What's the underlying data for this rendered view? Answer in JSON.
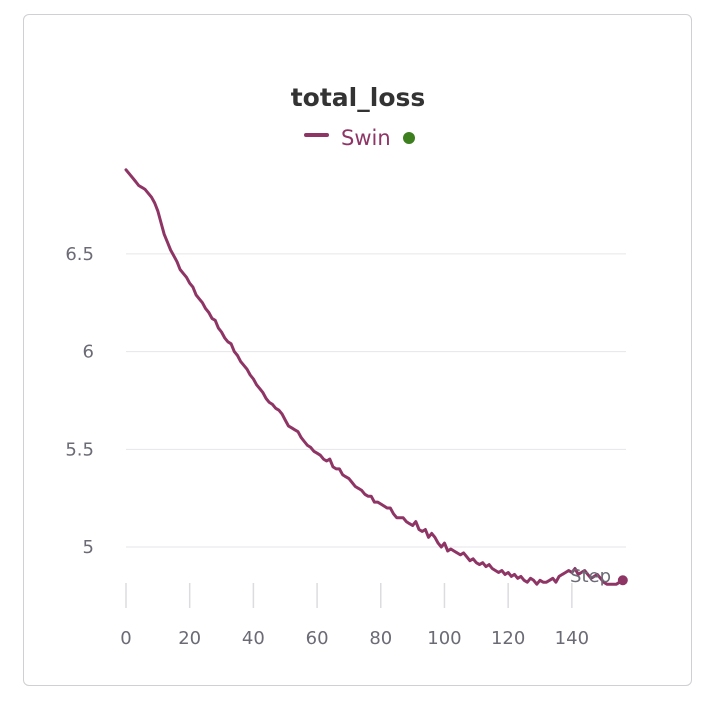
{
  "chart_data": {
    "type": "line",
    "title": "total_loss",
    "xlabel": "Step",
    "ylabel": "",
    "xlim": [
      0,
      157
    ],
    "ylim": [
      4.77,
      6.97
    ],
    "x_ticks": [
      0,
      20,
      40,
      60,
      80,
      100,
      120,
      140
    ],
    "y_ticks": [
      5,
      5.5,
      6,
      6.5
    ],
    "y_tick_labels": [
      "5",
      "5.5",
      "6",
      "6.5"
    ],
    "grid": true,
    "legend": "top-center",
    "series": [
      {
        "name": "Swin",
        "color": "#8e3565",
        "status_color": "#3d7f1f",
        "points": [
          [
            0,
            6.93
          ],
          [
            1,
            6.91
          ],
          [
            2,
            6.89
          ],
          [
            3,
            6.87
          ],
          [
            4,
            6.85
          ],
          [
            5,
            6.84
          ],
          [
            6,
            6.83
          ],
          [
            7,
            6.81
          ],
          [
            8,
            6.79
          ],
          [
            9,
            6.76
          ],
          [
            10,
            6.72
          ],
          [
            11,
            6.66
          ],
          [
            12,
            6.6
          ],
          [
            13,
            6.56
          ],
          [
            14,
            6.52
          ],
          [
            15,
            6.49
          ],
          [
            16,
            6.46
          ],
          [
            17,
            6.42
          ],
          [
            18,
            6.4
          ],
          [
            19,
            6.38
          ],
          [
            20,
            6.35
          ],
          [
            21,
            6.33
          ],
          [
            22,
            6.29
          ],
          [
            23,
            6.27
          ],
          [
            24,
            6.25
          ],
          [
            25,
            6.22
          ],
          [
            26,
            6.2
          ],
          [
            27,
            6.17
          ],
          [
            28,
            6.16
          ],
          [
            29,
            6.12
          ],
          [
            30,
            6.1
          ],
          [
            31,
            6.07
          ],
          [
            32,
            6.05
          ],
          [
            33,
            6.04
          ],
          [
            34,
            6.0
          ],
          [
            35,
            5.98
          ],
          [
            36,
            5.95
          ],
          [
            37,
            5.93
          ],
          [
            38,
            5.91
          ],
          [
            39,
            5.88
          ],
          [
            40,
            5.86
          ],
          [
            41,
            5.83
          ],
          [
            42,
            5.81
          ],
          [
            43,
            5.79
          ],
          [
            44,
            5.76
          ],
          [
            45,
            5.74
          ],
          [
            46,
            5.73
          ],
          [
            47,
            5.71
          ],
          [
            48,
            5.7
          ],
          [
            49,
            5.68
          ],
          [
            50,
            5.65
          ],
          [
            51,
            5.62
          ],
          [
            52,
            5.61
          ],
          [
            53,
            5.6
          ],
          [
            54,
            5.59
          ],
          [
            55,
            5.56
          ],
          [
            56,
            5.54
          ],
          [
            57,
            5.52
          ],
          [
            58,
            5.51
          ],
          [
            59,
            5.49
          ],
          [
            60,
            5.48
          ],
          [
            61,
            5.47
          ],
          [
            62,
            5.45
          ],
          [
            63,
            5.44
          ],
          [
            64,
            5.45
          ],
          [
            65,
            5.41
          ],
          [
            66,
            5.4
          ],
          [
            67,
            5.4
          ],
          [
            68,
            5.37
          ],
          [
            69,
            5.36
          ],
          [
            70,
            5.35
          ],
          [
            71,
            5.33
          ],
          [
            72,
            5.31
          ],
          [
            73,
            5.3
          ],
          [
            74,
            5.29
          ],
          [
            75,
            5.27
          ],
          [
            76,
            5.26
          ],
          [
            77,
            5.26
          ],
          [
            78,
            5.23
          ],
          [
            79,
            5.23
          ],
          [
            80,
            5.22
          ],
          [
            81,
            5.21
          ],
          [
            82,
            5.2
          ],
          [
            83,
            5.2
          ],
          [
            84,
            5.17
          ],
          [
            85,
            5.15
          ],
          [
            86,
            5.15
          ],
          [
            87,
            5.15
          ],
          [
            88,
            5.13
          ],
          [
            89,
            5.12
          ],
          [
            90,
            5.11
          ],
          [
            91,
            5.13
          ],
          [
            92,
            5.09
          ],
          [
            93,
            5.08
          ],
          [
            94,
            5.09
          ],
          [
            95,
            5.05
          ],
          [
            96,
            5.07
          ],
          [
            97,
            5.05
          ],
          [
            98,
            5.02
          ],
          [
            99,
            5.0
          ],
          [
            100,
            5.02
          ],
          [
            101,
            4.98
          ],
          [
            102,
            4.99
          ],
          [
            103,
            4.98
          ],
          [
            104,
            4.97
          ],
          [
            105,
            4.96
          ],
          [
            106,
            4.97
          ],
          [
            107,
            4.95
          ],
          [
            108,
            4.93
          ],
          [
            109,
            4.94
          ],
          [
            110,
            4.92
          ],
          [
            111,
            4.91
          ],
          [
            112,
            4.92
          ],
          [
            113,
            4.9
          ],
          [
            114,
            4.91
          ],
          [
            115,
            4.89
          ],
          [
            116,
            4.88
          ],
          [
            117,
            4.87
          ],
          [
            118,
            4.88
          ],
          [
            119,
            4.86
          ],
          [
            120,
            4.87
          ],
          [
            121,
            4.85
          ],
          [
            122,
            4.86
          ],
          [
            123,
            4.84
          ],
          [
            124,
            4.85
          ],
          [
            125,
            4.83
          ],
          [
            126,
            4.82
          ],
          [
            127,
            4.84
          ],
          [
            128,
            4.83
          ],
          [
            129,
            4.81
          ],
          [
            130,
            4.83
          ],
          [
            131,
            4.82
          ],
          [
            132,
            4.82
          ],
          [
            133,
            4.83
          ],
          [
            134,
            4.84
          ],
          [
            135,
            4.82
          ],
          [
            136,
            4.85
          ],
          [
            137,
            4.86
          ],
          [
            138,
            4.87
          ],
          [
            139,
            4.88
          ],
          [
            140,
            4.87
          ],
          [
            141,
            4.89
          ],
          [
            142,
            4.86
          ],
          [
            143,
            4.87
          ],
          [
            144,
            4.88
          ],
          [
            145,
            4.86
          ],
          [
            146,
            4.84
          ],
          [
            147,
            4.85
          ],
          [
            148,
            4.86
          ],
          [
            149,
            4.84
          ],
          [
            150,
            4.82
          ],
          [
            151,
            4.81
          ],
          [
            152,
            4.81
          ],
          [
            153,
            4.81
          ],
          [
            154,
            4.81
          ],
          [
            155,
            4.82
          ],
          [
            156,
            4.83
          ]
        ]
      }
    ]
  }
}
